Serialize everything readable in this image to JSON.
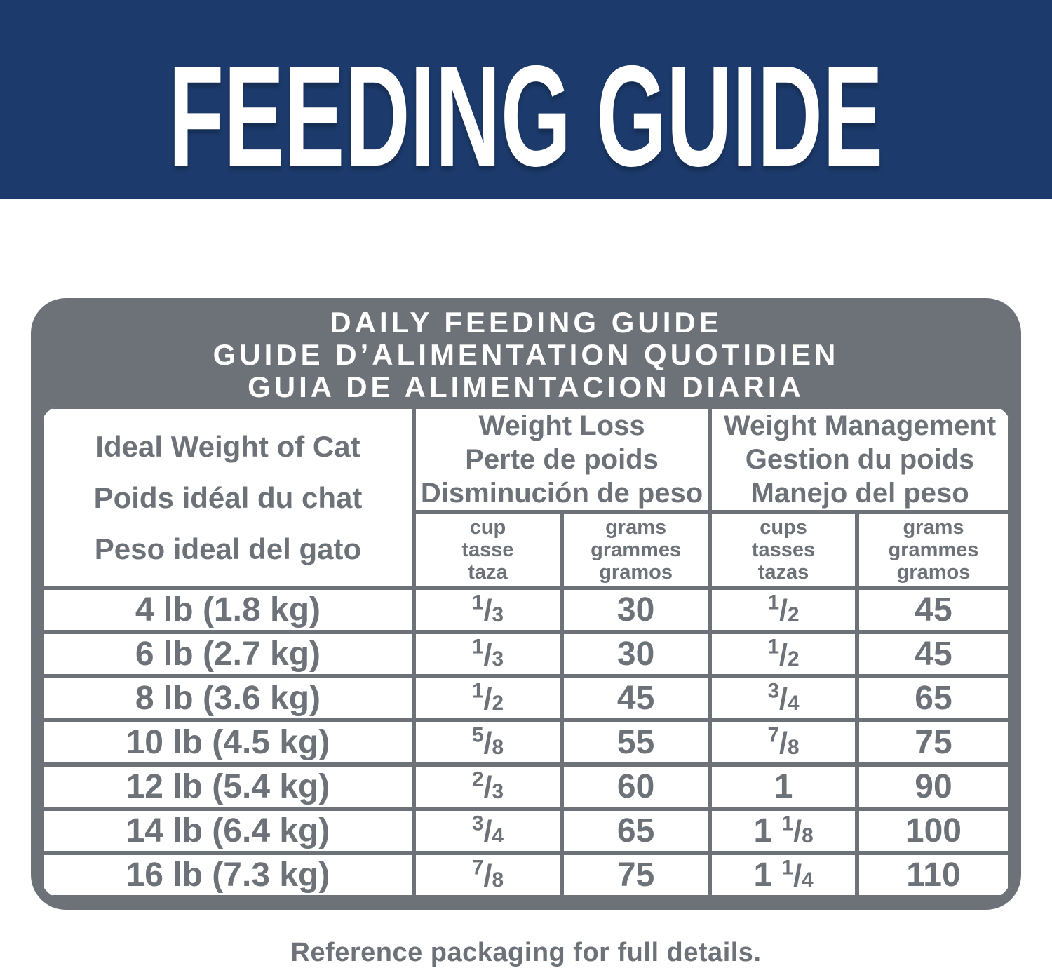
{
  "banner": {
    "title": "FEEDING GUIDE"
  },
  "colors": {
    "banner_bg": "#1c3a6b",
    "gray": "#6d7278",
    "text_on_banner": "#ffffff"
  },
  "table": {
    "title_lines": [
      "DAILY FEEDING GUIDE",
      "GUIDE D’ALIMENTATION QUOTIDIEN",
      "GUIA DE ALIMENTACION DIARIA"
    ],
    "ideal_header_lines": [
      "Ideal Weight of Cat",
      "Poids idéal du chat",
      "Peso ideal del gato"
    ],
    "weight_loss": {
      "lines": [
        "Weight Loss",
        "Perte de poids",
        "Disminución de peso"
      ],
      "cup_lines": [
        "cup",
        "tasse",
        "taza"
      ],
      "grams_lines": [
        "grams",
        "grammes",
        "gramos"
      ]
    },
    "weight_management": {
      "lines": [
        "Weight Management",
        "Gestion du poids",
        "Manejo del peso"
      ],
      "cups_lines": [
        "cups",
        "tasses",
        "tazas"
      ],
      "grams_lines": [
        "grams",
        "grammes",
        "gramos"
      ]
    },
    "rows": [
      {
        "weight": "4 lb (1.8 kg)",
        "loss_cup": {
          "whole": "",
          "num": "1",
          "den": "3"
        },
        "loss_grams": "30",
        "mgmt_cups": {
          "whole": "",
          "num": "1",
          "den": "2"
        },
        "mgmt_grams": "45"
      },
      {
        "weight": "6 lb (2.7 kg)",
        "loss_cup": {
          "whole": "",
          "num": "1",
          "den": "3"
        },
        "loss_grams": "30",
        "mgmt_cups": {
          "whole": "",
          "num": "1",
          "den": "2"
        },
        "mgmt_grams": "45"
      },
      {
        "weight": "8 lb (3.6 kg)",
        "loss_cup": {
          "whole": "",
          "num": "1",
          "den": "2"
        },
        "loss_grams": "45",
        "mgmt_cups": {
          "whole": "",
          "num": "3",
          "den": "4"
        },
        "mgmt_grams": "65"
      },
      {
        "weight": "10 lb (4.5 kg)",
        "loss_cup": {
          "whole": "",
          "num": "5",
          "den": "8"
        },
        "loss_grams": "55",
        "mgmt_cups": {
          "whole": "",
          "num": "7",
          "den": "8"
        },
        "mgmt_grams": "75"
      },
      {
        "weight": "12 lb (5.4 kg)",
        "loss_cup": {
          "whole": "",
          "num": "2",
          "den": "3"
        },
        "loss_grams": "60",
        "mgmt_cups": {
          "whole": "1",
          "num": "",
          "den": ""
        },
        "mgmt_grams": "90"
      },
      {
        "weight": "14 lb (6.4 kg)",
        "loss_cup": {
          "whole": "",
          "num": "3",
          "den": "4"
        },
        "loss_grams": "65",
        "mgmt_cups": {
          "whole": "1",
          "num": "1",
          "den": "8"
        },
        "mgmt_grams": "100"
      },
      {
        "weight": "16 lb (7.3 kg)",
        "loss_cup": {
          "whole": "",
          "num": "7",
          "den": "8"
        },
        "loss_grams": "75",
        "mgmt_cups": {
          "whole": "1",
          "num": "1",
          "den": "4"
        },
        "mgmt_grams": "110"
      }
    ]
  },
  "footer": {
    "note": "Reference packaging for full details."
  }
}
